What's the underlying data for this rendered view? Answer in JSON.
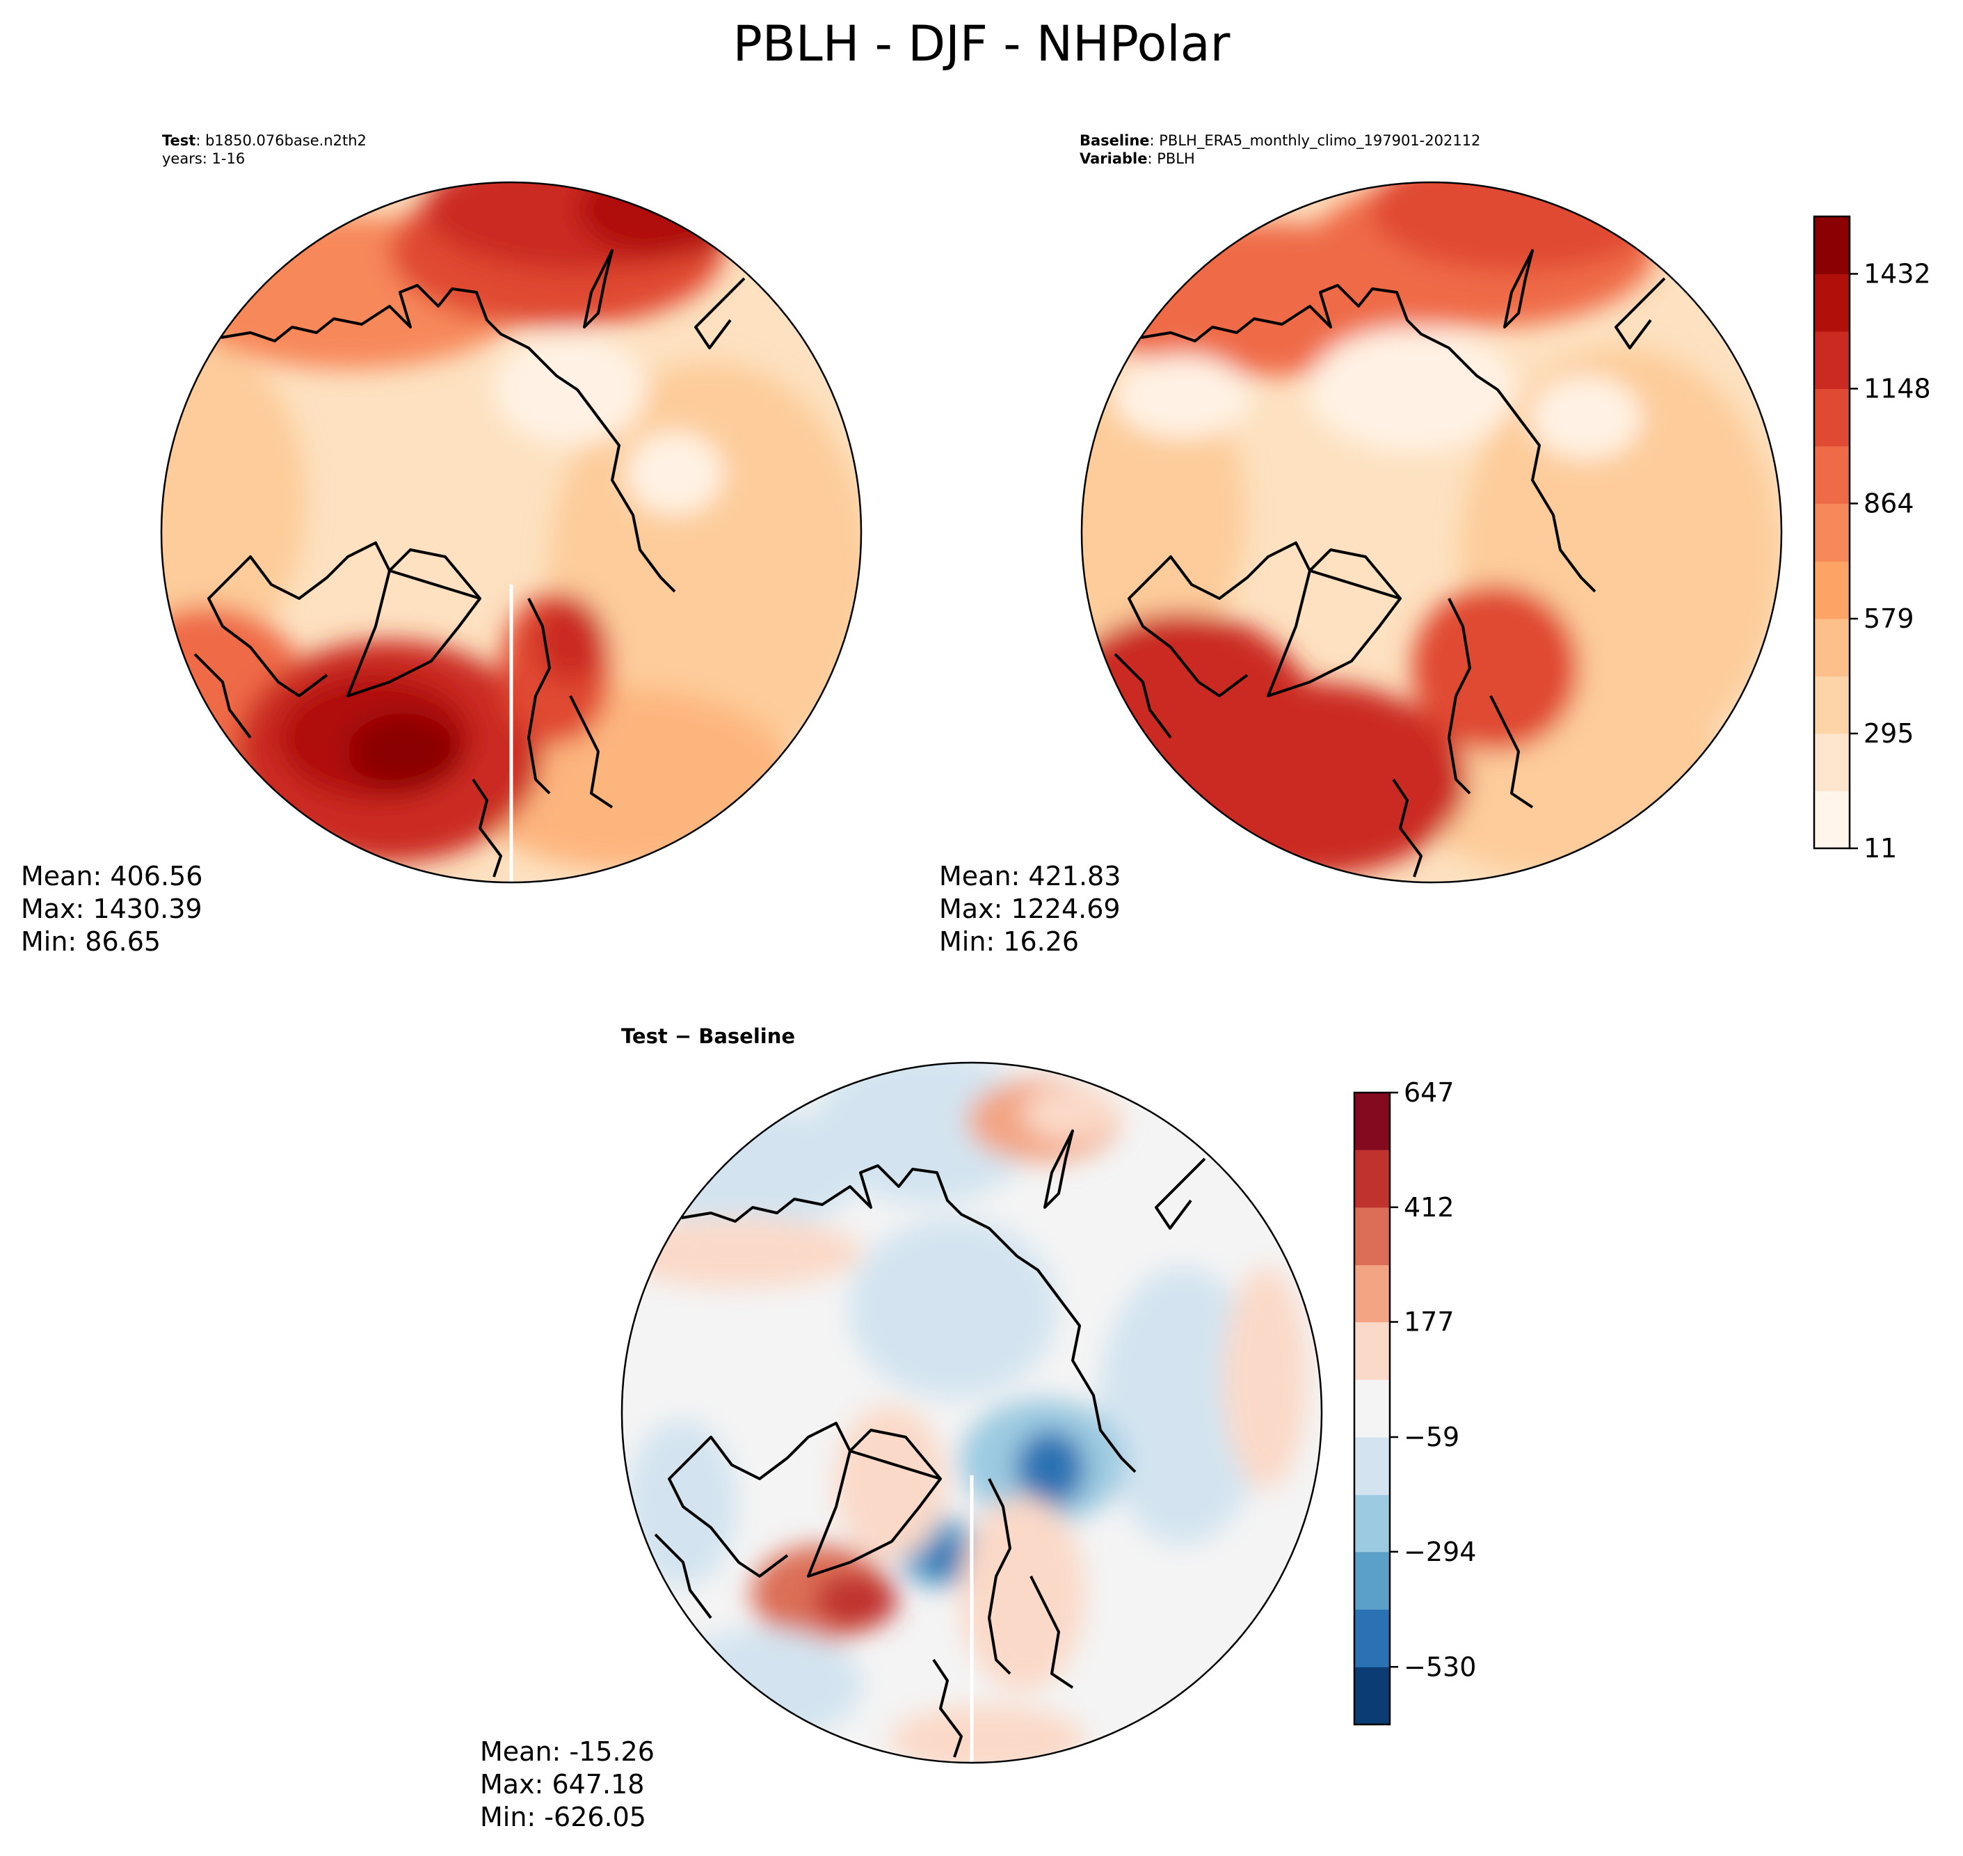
{
  "suptitle": "PBLH - DJF - NHPolar",
  "test_panel": {
    "label_bold": "Test",
    "label_text": ": b1850.076base.n2th2",
    "line2": "years: 1-16",
    "mean": "Mean: 406.56",
    "max": "Max: 1430.39",
    "min": "Min: 86.65"
  },
  "baseline_panel": {
    "label_bold": "Baseline",
    "label_text": ": PBLH_ERA5_monthly_climo_197901-202112",
    "line2_bold": "Variable",
    "line2_text": ": PBLH",
    "mean": "Mean: 421.83",
    "max": "Max: 1224.69",
    "min": "Min: 16.26"
  },
  "diff_panel": {
    "title": "Test − Baseline",
    "mean": "Mean: -15.26",
    "max": "Max: 647.18",
    "min": "Min: -626.05"
  },
  "chart_data": [
    {
      "type": "heatmap",
      "title": "PBLH - DJF - NHPolar",
      "projection": "North polar stereographic",
      "colormap": "OrRd",
      "colorbar": {
        "ticks": [
          11,
          295,
          579,
          864,
          1148,
          1432
        ],
        "tick_labels": [
          "11",
          "295",
          "579",
          "864",
          "1148",
          "1432"
        ],
        "levels": [
          11,
          153,
          295,
          437,
          579,
          721,
          864,
          1006,
          1148,
          1290,
          1432,
          1574
        ],
        "colors": [
          "#fff5eb",
          "#fee6ce",
          "#fdd3a8",
          "#fdc08b",
          "#fca466",
          "#f7885a",
          "#ef6b47",
          "#e04a33",
          "#cb2a20",
          "#b00f0a",
          "#8b0000"
        ]
      },
      "panels": [
        {
          "name": "Test",
          "mean": 406.56,
          "max": 1430.39,
          "min": 86.65
        },
        {
          "name": "Baseline",
          "mean": 421.83,
          "max": 1224.69,
          "min": 16.26
        }
      ]
    },
    {
      "type": "heatmap",
      "title": "Test − Baseline",
      "projection": "North polar stereographic",
      "colormap": "RdBu_r",
      "colorbar": {
        "ticks": [
          -530,
          -294,
          -59,
          177,
          412,
          647
        ],
        "tick_labels": [
          "−530",
          "−294",
          "−59",
          "177",
          "412",
          "647"
        ],
        "levels": [
          -648,
          -530,
          -412,
          -294,
          -177,
          -59,
          59,
          177,
          294,
          412,
          530,
          647
        ],
        "colors": [
          "#0b3c73",
          "#2a72b3",
          "#5aa0c9",
          "#9ccae1",
          "#d3e4f0",
          "#f4f4f4",
          "#fbd9c8",
          "#f3a483",
          "#dc6e57",
          "#c0322e",
          "#840a20"
        ]
      },
      "mean": -15.26,
      "max": 647.18,
      "min": -626.05
    }
  ]
}
